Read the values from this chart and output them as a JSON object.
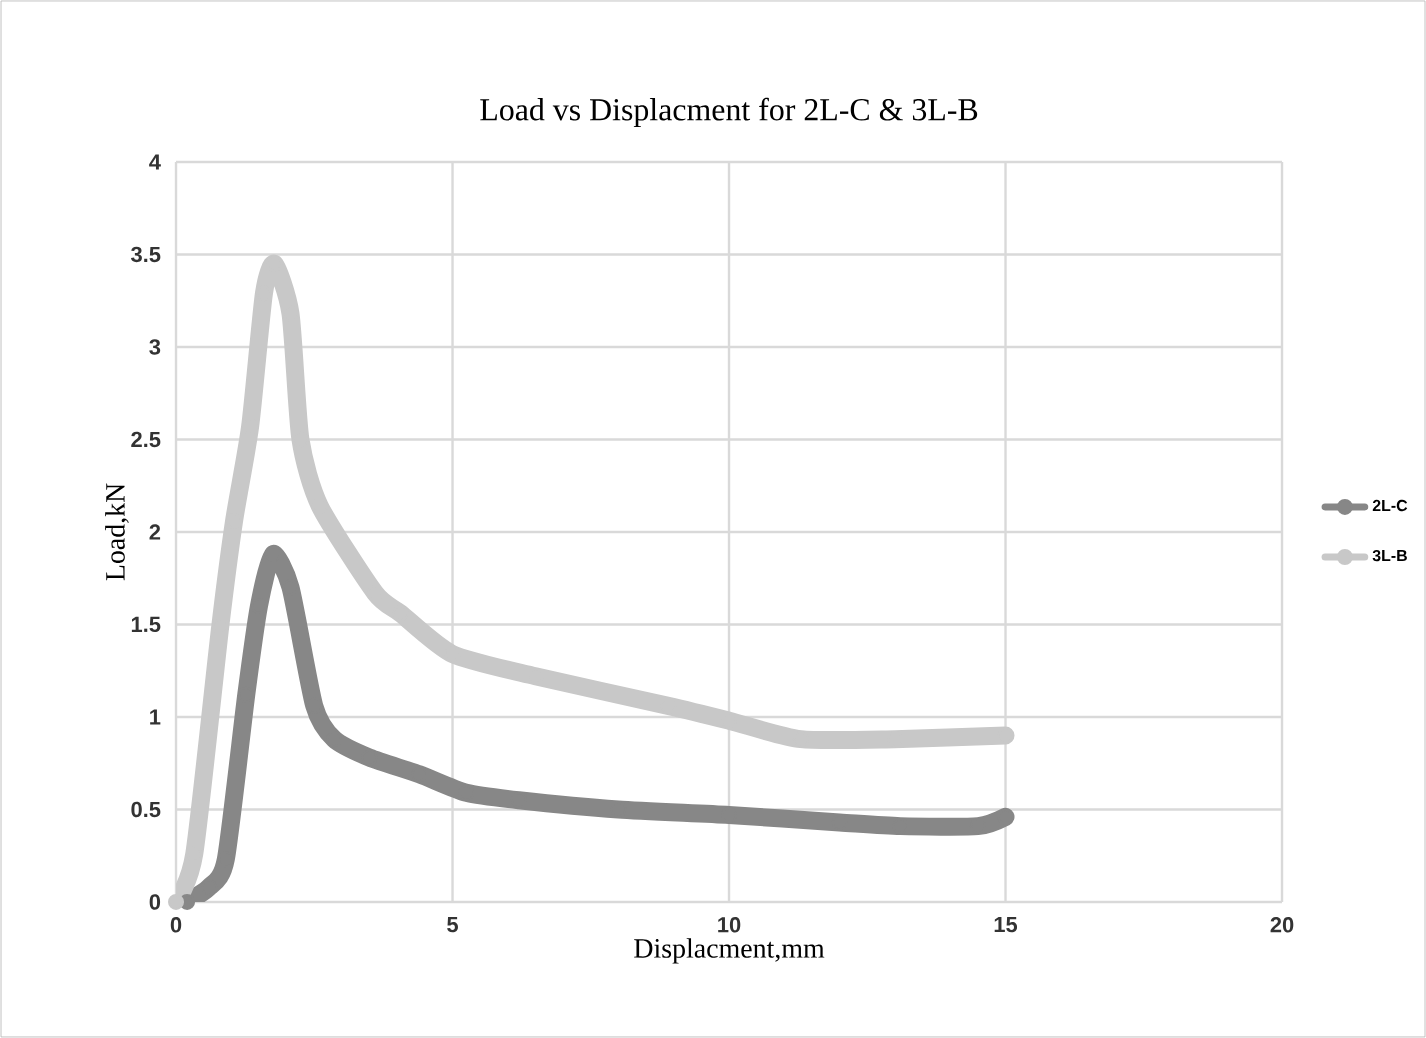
{
  "chart_data": {
    "type": "line",
    "title": "Load vs Displacment for 2L-C & 3L-B",
    "xlabel": "Displacment,mm",
    "ylabel": "Load,kN",
    "xlim": [
      0,
      20
    ],
    "ylim": [
      0,
      4
    ],
    "xticks": [
      0,
      5,
      10,
      15,
      20
    ],
    "yticks": [
      0,
      0.5,
      1,
      1.5,
      2,
      2.5,
      3,
      3.5,
      4
    ],
    "grid": true,
    "legend": "right",
    "marker": "circle",
    "series": [
      {
        "name": "2L-C",
        "color": "#878787",
        "x": [
          0.2,
          0.6,
          0.9,
          1.27,
          1.5,
          1.75,
          2.07,
          2.5,
          2.86,
          3.5,
          4.4,
          5.25,
          6.2,
          8,
          10,
          12,
          13.1,
          14.5,
          15
        ],
        "values": [
          0,
          0.08,
          0.23,
          1.12,
          1.6,
          1.88,
          1.7,
          1.06,
          0.88,
          0.78,
          0.69,
          0.59,
          0.55,
          0.5,
          0.47,
          0.43,
          0.41,
          0.41,
          0.46
        ]
      },
      {
        "name": "3L-B",
        "color": "#c8c8c8",
        "x": [
          0,
          0.33,
          0.8,
          1.05,
          1.34,
          1.59,
          1.78,
          2.07,
          2.25,
          2.6,
          3.6,
          4.06,
          5.0,
          6.5,
          8.9,
          10,
          11.3,
          13,
          15
        ],
        "values": [
          0,
          0.26,
          1.49,
          2.06,
          2.57,
          3.29,
          3.45,
          3.18,
          2.5,
          2.14,
          1.67,
          1.56,
          1.34,
          1.22,
          1.06,
          0.98,
          0.88,
          0.88,
          0.9
        ]
      }
    ]
  }
}
